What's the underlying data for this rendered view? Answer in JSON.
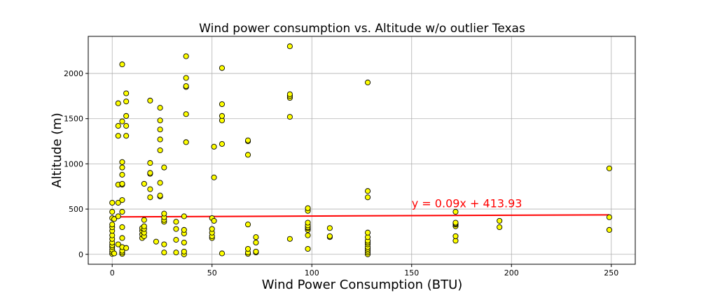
{
  "chart_data": {
    "type": "scatter",
    "title": "Wind power consumption vs. Altitude w/o outlier Texas",
    "xlabel": "Wind Power Consumption (BTU)",
    "ylabel": "Altitude (m)",
    "xlim": [
      -12,
      262
    ],
    "ylim": [
      -110,
      2410
    ],
    "xticks": [
      0,
      50,
      100,
      150,
      200,
      250
    ],
    "yticks": [
      0,
      500,
      1000,
      1500,
      2000
    ],
    "grid": true,
    "marker_color": "#ffff00",
    "marker_edge": "#000000",
    "line_color": "#ff0000",
    "regression": {
      "slope": 0.09,
      "intercept": 413.93,
      "x_range": [
        0,
        249
      ],
      "label": "y = 0.09x + 413.93",
      "label_pos": [
        150,
        520
      ]
    },
    "points": [
      [
        0,
        5
      ],
      [
        0,
        25
      ],
      [
        0,
        50
      ],
      [
        0,
        80
      ],
      [
        0,
        100
      ],
      [
        0,
        130
      ],
      [
        0,
        170
      ],
      [
        0,
        210
      ],
      [
        0,
        260
      ],
      [
        0,
        300
      ],
      [
        0,
        330
      ],
      [
        0,
        400
      ],
      [
        0,
        470
      ],
      [
        0,
        570
      ],
      [
        1,
        10
      ],
      [
        1,
        390
      ],
      [
        3,
        110
      ],
      [
        3,
        420
      ],
      [
        3,
        570
      ],
      [
        3,
        770
      ],
      [
        3,
        1310
      ],
      [
        3,
        1420
      ],
      [
        3,
        1670
      ],
      [
        5,
        5
      ],
      [
        5,
        20
      ],
      [
        5,
        40
      ],
      [
        5,
        80
      ],
      [
        5,
        180
      ],
      [
        5,
        300
      ],
      [
        5,
        470
      ],
      [
        5,
        600
      ],
      [
        5,
        770
      ],
      [
        5,
        780
      ],
      [
        5,
        880
      ],
      [
        5,
        960
      ],
      [
        5,
        1020
      ],
      [
        5,
        1470
      ],
      [
        5,
        2100
      ],
      [
        7,
        70
      ],
      [
        7,
        1310
      ],
      [
        7,
        1420
      ],
      [
        7,
        1530
      ],
      [
        7,
        1690
      ],
      [
        7,
        1780
      ],
      [
        15,
        180
      ],
      [
        15,
        220
      ],
      [
        15,
        260
      ],
      [
        15,
        290
      ],
      [
        16,
        200
      ],
      [
        16,
        240
      ],
      [
        16,
        280
      ],
      [
        16,
        310
      ],
      [
        16,
        380
      ],
      [
        16,
        780
      ],
      [
        19,
        630
      ],
      [
        19,
        720
      ],
      [
        19,
        890
      ],
      [
        19,
        900
      ],
      [
        19,
        1010
      ],
      [
        19,
        1700
      ],
      [
        22,
        140
      ],
      [
        24,
        640
      ],
      [
        24,
        650
      ],
      [
        24,
        790
      ],
      [
        24,
        1150
      ],
      [
        24,
        1270
      ],
      [
        24,
        1380
      ],
      [
        24,
        1480
      ],
      [
        24,
        1620
      ],
      [
        26,
        20
      ],
      [
        26,
        110
      ],
      [
        26,
        360
      ],
      [
        26,
        380
      ],
      [
        26,
        410
      ],
      [
        26,
        450
      ],
      [
        26,
        960
      ],
      [
        32,
        20
      ],
      [
        32,
        160
      ],
      [
        32,
        280
      ],
      [
        32,
        360
      ],
      [
        36,
        0
      ],
      [
        36,
        30
      ],
      [
        36,
        130
      ],
      [
        36,
        230
      ],
      [
        36,
        270
      ],
      [
        36,
        420
      ],
      [
        37,
        1240
      ],
      [
        37,
        1550
      ],
      [
        37,
        1850
      ],
      [
        37,
        1860
      ],
      [
        37,
        1950
      ],
      [
        37,
        2190
      ],
      [
        50,
        180
      ],
      [
        50,
        200
      ],
      [
        50,
        240
      ],
      [
        50,
        280
      ],
      [
        50,
        400
      ],
      [
        51,
        370
      ],
      [
        51,
        850
      ],
      [
        51,
        1190
      ],
      [
        55,
        10
      ],
      [
        55,
        1220
      ],
      [
        55,
        1480
      ],
      [
        55,
        1530
      ],
      [
        55,
        1660
      ],
      [
        55,
        2060
      ],
      [
        68,
        5
      ],
      [
        68,
        20
      ],
      [
        68,
        60
      ],
      [
        68,
        330
      ],
      [
        68,
        1100
      ],
      [
        68,
        1250
      ],
      [
        68,
        1260
      ],
      [
        72,
        20
      ],
      [
        72,
        30
      ],
      [
        72,
        130
      ],
      [
        72,
        190
      ],
      [
        89,
        170
      ],
      [
        89,
        1520
      ],
      [
        89,
        1730
      ],
      [
        89,
        1750
      ],
      [
        89,
        1770
      ],
      [
        89,
        2300
      ],
      [
        98,
        60
      ],
      [
        98,
        210
      ],
      [
        98,
        270
      ],
      [
        98,
        290
      ],
      [
        98,
        300
      ],
      [
        98,
        320
      ],
      [
        98,
        350
      ],
      [
        98,
        480
      ],
      [
        98,
        510
      ],
      [
        109,
        190
      ],
      [
        109,
        200
      ],
      [
        109,
        290
      ],
      [
        128,
        0
      ],
      [
        128,
        20
      ],
      [
        128,
        40
      ],
      [
        128,
        60
      ],
      [
        128,
        80
      ],
      [
        128,
        110
      ],
      [
        128,
        130
      ],
      [
        128,
        150
      ],
      [
        128,
        190
      ],
      [
        128,
        240
      ],
      [
        128,
        630
      ],
      [
        128,
        700
      ],
      [
        128,
        1900
      ],
      [
        172,
        150
      ],
      [
        172,
        200
      ],
      [
        172,
        310
      ],
      [
        172,
        330
      ],
      [
        172,
        340
      ],
      [
        172,
        350
      ],
      [
        172,
        470
      ],
      [
        194,
        300
      ],
      [
        194,
        370
      ],
      [
        249,
        270
      ],
      [
        249,
        410
      ],
      [
        249,
        950
      ]
    ]
  }
}
